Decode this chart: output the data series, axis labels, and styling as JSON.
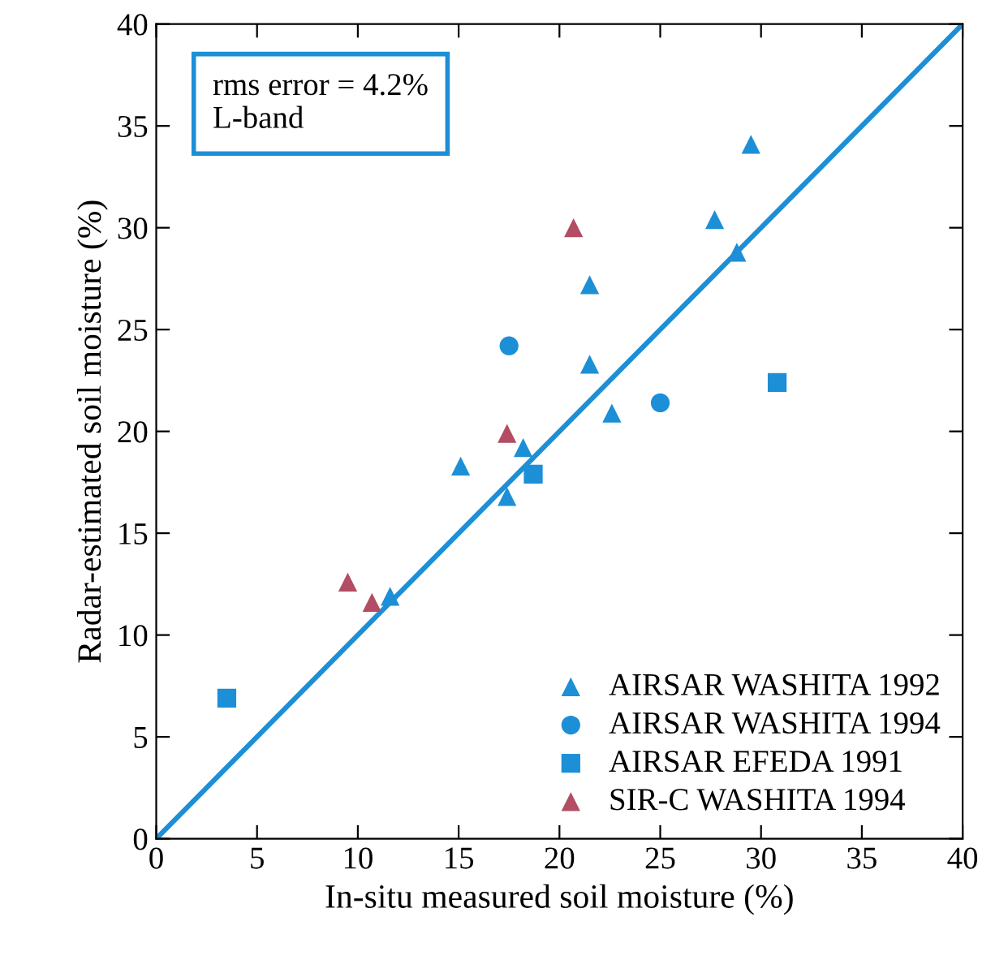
{
  "chart_data": {
    "type": "scatter",
    "xlabel": "In-situ measured soil moisture (%)",
    "ylabel": "Radar-estimated soil moisture (%)",
    "annotations": [
      "rms error = 4.2%\nL-band"
    ],
    "xlim": [
      0,
      40
    ],
    "ylim": [
      0,
      40
    ],
    "xticks": [
      0,
      5,
      10,
      15,
      20,
      25,
      30,
      35,
      40
    ],
    "yticks": [
      0,
      5,
      10,
      15,
      20,
      25,
      30,
      35,
      40
    ],
    "grid": false,
    "legend": "bottom right",
    "series": [
      {
        "name": "AIRSAR WASHITA 1992",
        "color": "#1c8fd6",
        "marker": "triangle",
        "x": [
          29.5,
          27.7,
          28.8,
          21.5,
          21.5,
          22.6,
          15.1,
          18.2,
          17.4,
          11.6
        ],
        "values": [
          34.1,
          30.4,
          28.8,
          27.2,
          23.3,
          20.9,
          18.3,
          19.2,
          16.8,
          11.9
        ]
      },
      {
        "name": "AIRSAR WASHITA 1994",
        "color": "#1c8fd6",
        "marker": "circle",
        "x": [
          17.5,
          25.0
        ],
        "values": [
          24.2,
          21.4
        ]
      },
      {
        "name": "AIRSAR EFEDA 1991",
        "color": "#1c8fd6",
        "marker": "square",
        "x": [
          30.8,
          18.7,
          3.5
        ],
        "values": [
          22.4,
          17.9,
          6.9
        ]
      },
      {
        "name": "SIR-C WASHITA 1994",
        "color": "#b24d63",
        "marker": "triangle",
        "x": [
          20.7,
          17.4,
          9.5,
          10.7
        ],
        "values": [
          30.0,
          19.9,
          12.6,
          11.6
        ]
      },
      {
        "type": "line",
        "color": "#1c8fd6",
        "marker": "none",
        "line_style": "solid",
        "x": [
          0,
          40
        ],
        "values": [
          0,
          40
        ]
      }
    ]
  }
}
